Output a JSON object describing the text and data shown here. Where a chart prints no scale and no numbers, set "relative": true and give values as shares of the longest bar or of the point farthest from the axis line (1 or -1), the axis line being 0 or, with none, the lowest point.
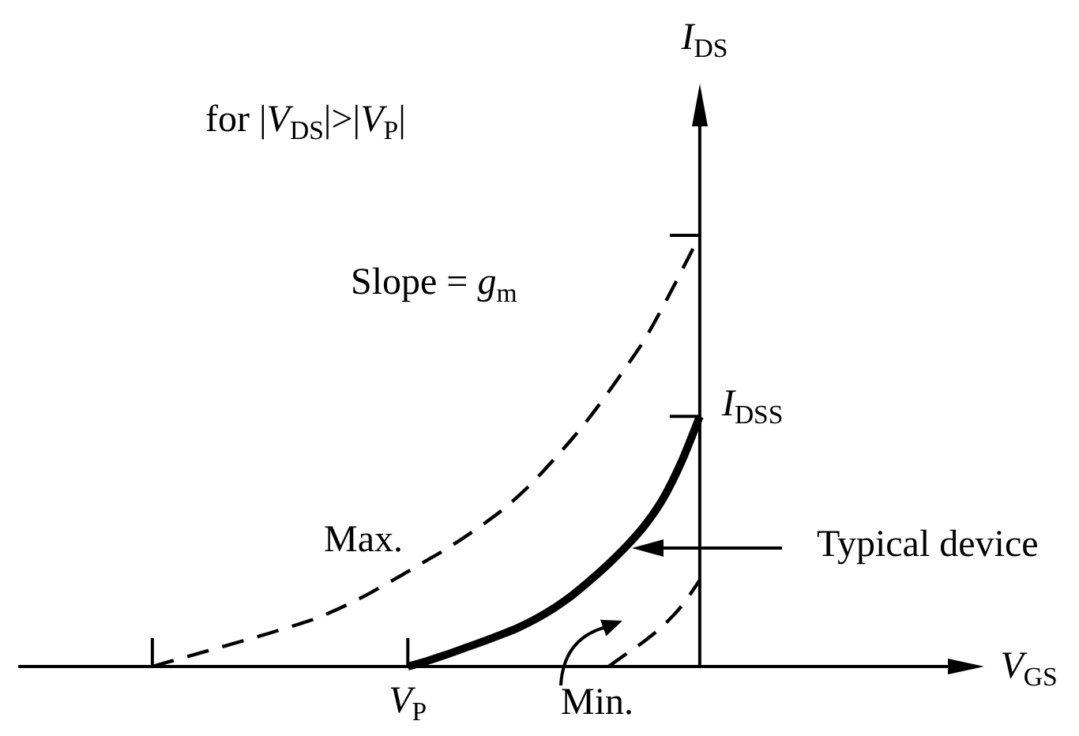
{
  "chart_data": {
    "type": "line",
    "relative": true,
    "xlabel": "V$_{GS}$",
    "ylabel": "I$_{DS}$",
    "categories": [
      null,
      null,
      null,
      null,
      null,
      null,
      null,
      null,
      null,
      null,
      null,
      null,
      null,
      null,
      null,
      null,
      null,
      null,
      null,
      null,
      null,
      null,
      null,
      null,
      null,
      null,
      null,
      null,
      null,
      null,
      null,
      null,
      null,
      null,
      null,
      null,
      null,
      null,
      null,
      null,
      null,
      null,
      null,
      null,
      null,
      null,
      null,
      null,
      null,
      null,
      null,
      null,
      null
    ],
    "series": [
      {
        "name": "Max.",
        "color": "#000000",
        "line_style": "dashed",
        "values": [
          null,
          null,
          null,
          null,
          null,
          null,
          null,
          0,
          0.012,
          0.024,
          0.036,
          0.048,
          0.06,
          0.072,
          0.085,
          0.098,
          0.112,
          0.13,
          0.15,
          0.172,
          0.196,
          0.22,
          0.245,
          0.27,
          0.297,
          0.326,
          0.357,
          0.393,
          0.434,
          0.48,
          0.528,
          0.58,
          0.637,
          0.697,
          0.76,
          0.836,
          0.917,
          1,
          null,
          null,
          null,
          null,
          null,
          null,
          null,
          null,
          null,
          null,
          null,
          null,
          null,
          null,
          null
        ]
      },
      {
        "name": "Typical device",
        "color": "#000000",
        "line_style": "solid",
        "values": [
          null,
          null,
          null,
          null,
          null,
          null,
          null,
          null,
          null,
          null,
          null,
          null,
          null,
          null,
          null,
          null,
          null,
          null,
          null,
          null,
          null,
          0,
          0.012,
          0.026,
          0.041,
          0.056,
          0.072,
          0.089,
          0.11,
          0.135,
          0.165,
          0.2,
          0.238,
          0.28,
          0.328,
          0.39,
          0.475,
          0.58,
          null,
          null,
          null,
          null,
          null,
          null,
          null,
          null,
          null,
          null,
          null,
          null,
          null,
          null,
          null
        ]
      },
      {
        "name": "Min.",
        "color": "#000000",
        "line_style": "dashed",
        "values": [
          null,
          null,
          null,
          null,
          null,
          null,
          null,
          null,
          null,
          null,
          null,
          null,
          null,
          null,
          null,
          null,
          null,
          null,
          null,
          null,
          null,
          null,
          null,
          null,
          null,
          null,
          null,
          null,
          null,
          null,
          null,
          null,
          0,
          0.03,
          0.06,
          0.095,
          0.14,
          0.2,
          null,
          null,
          null,
          null,
          null,
          null,
          null,
          null,
          null,
          null,
          null,
          null,
          null,
          null,
          null
        ]
      }
    ],
    "annotations": [
      "for |V$_{DS}$|>|V$_{P}$|",
      "Slope = g$_{m}$",
      "I$_{DSS}$",
      {
        "text": "V$_{P}$",
        "y": 0
      }
    ]
  }
}
